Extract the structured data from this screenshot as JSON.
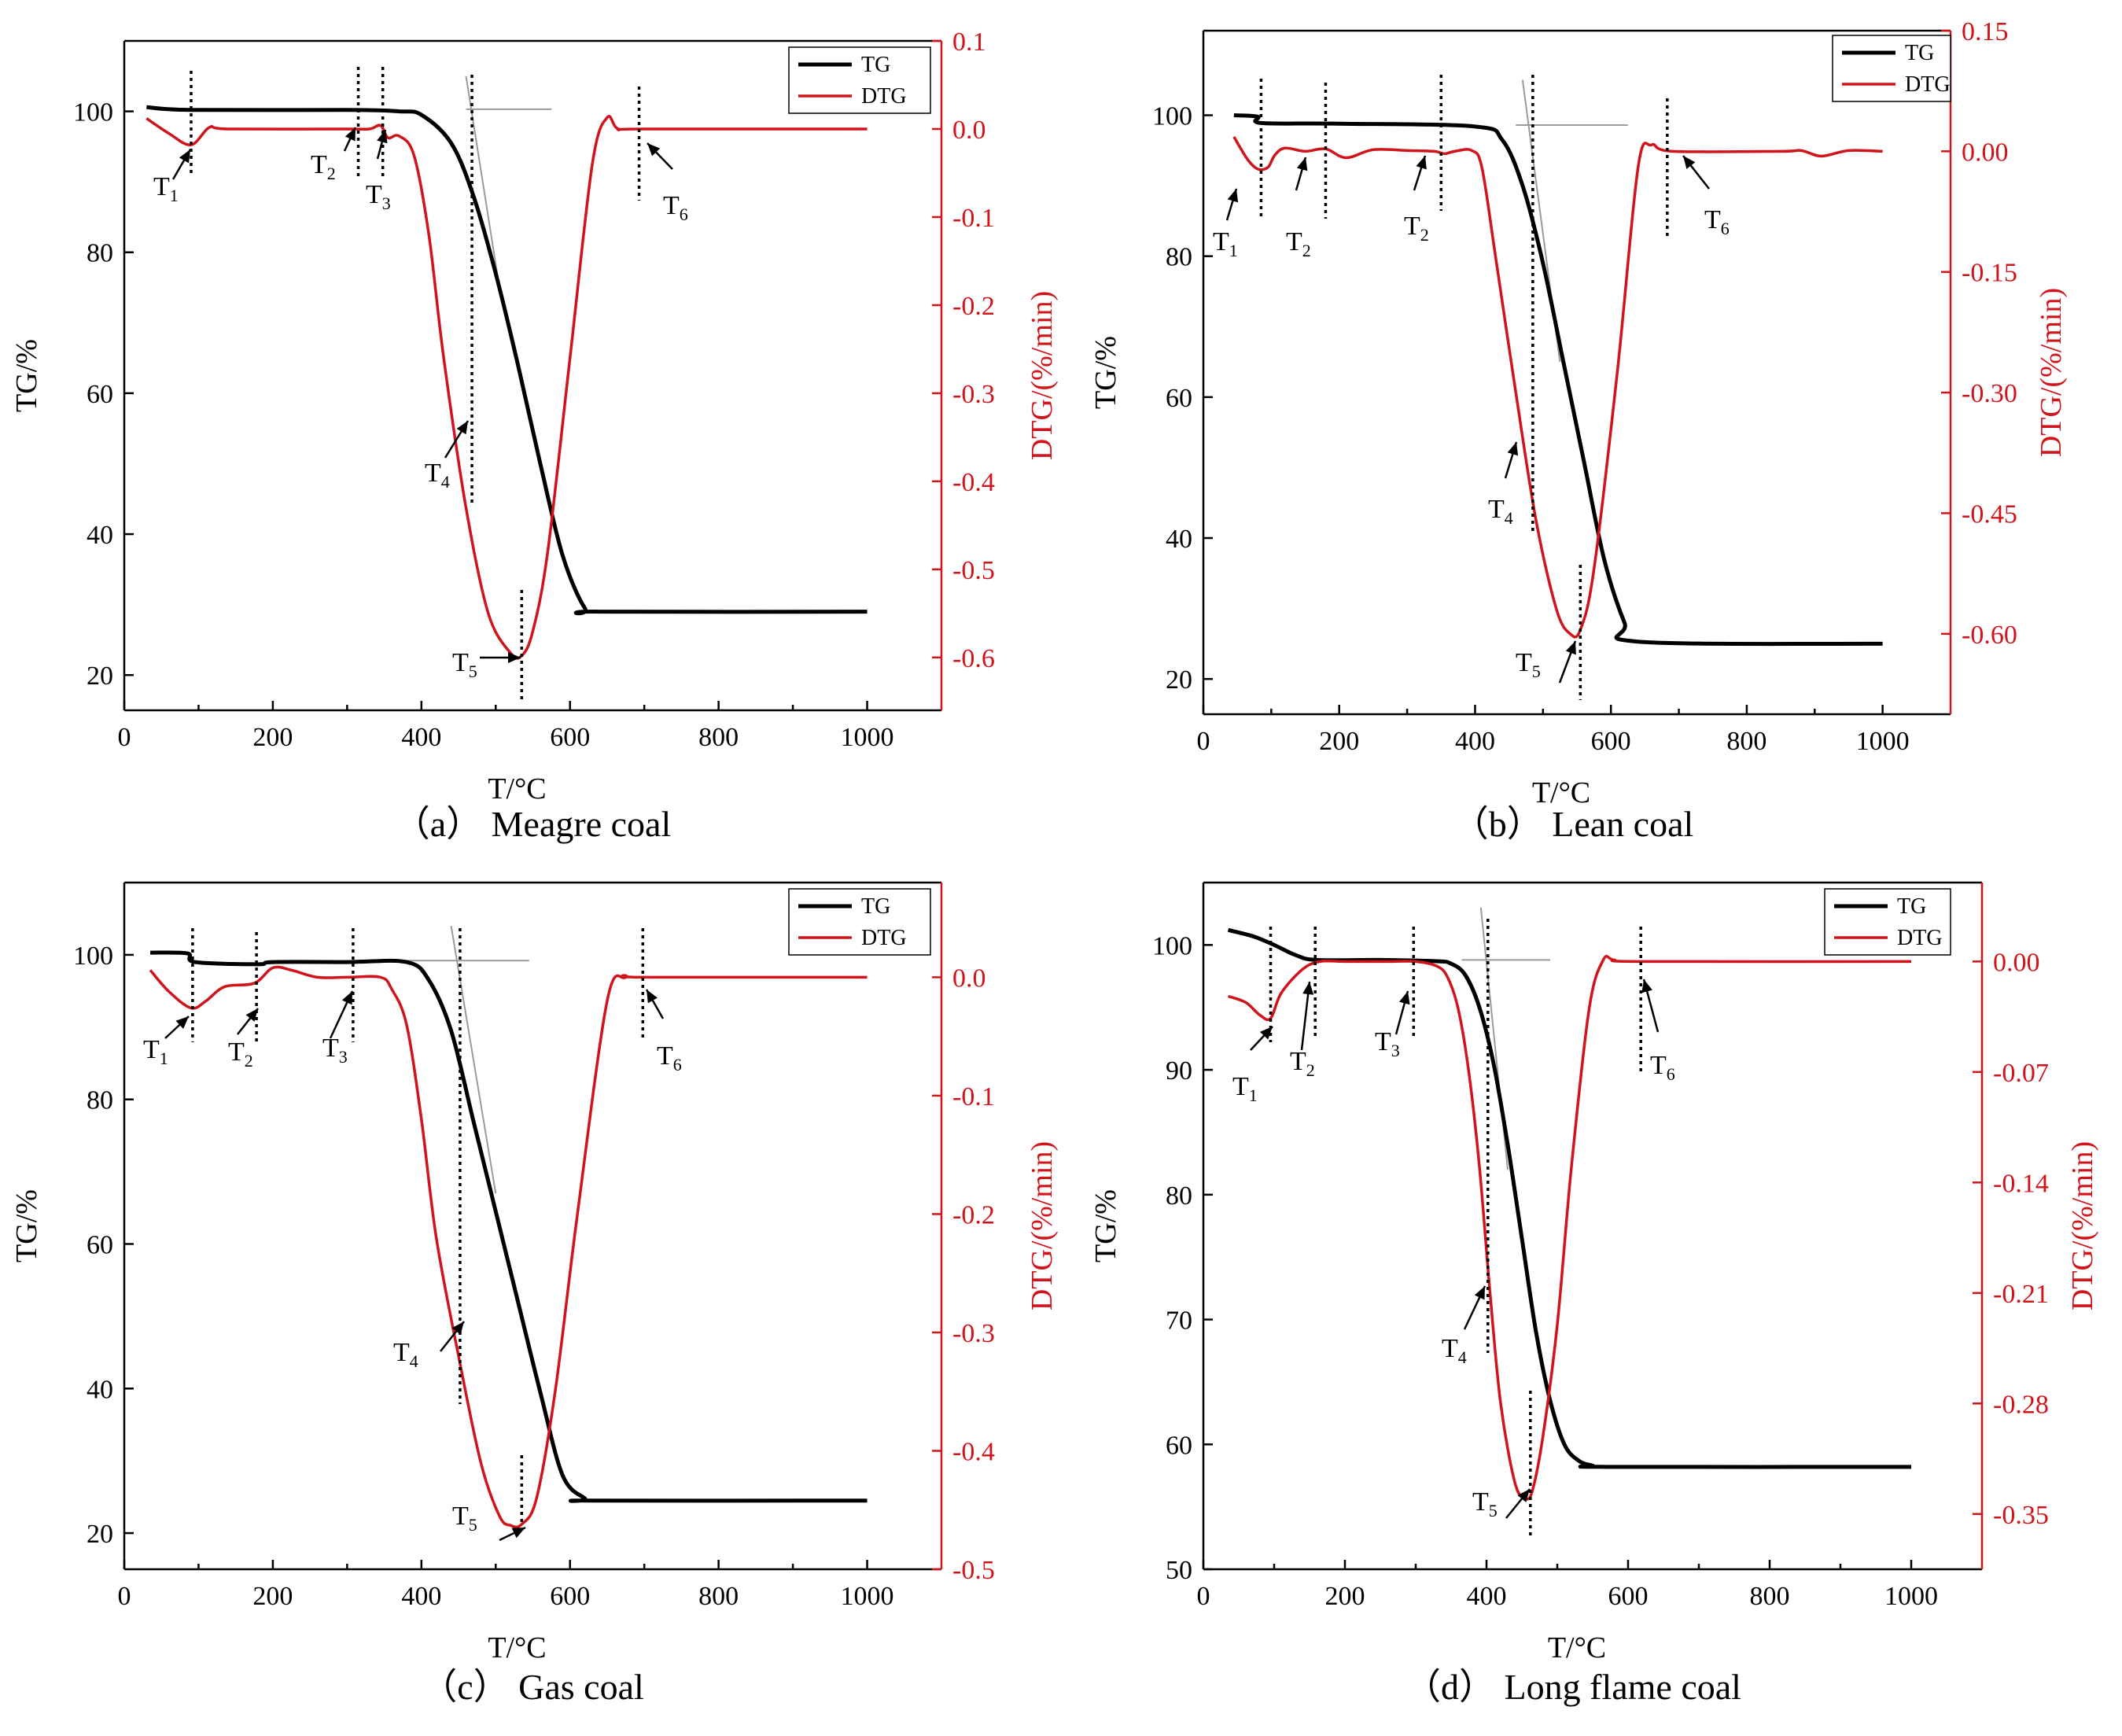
{
  "chart_data": [
    {
      "type": "line",
      "id": "a",
      "caption": "（a） Meagre coal",
      "xlabel": "T/°C",
      "ylabel_left": "TG/%",
      "ylabel_right": "DTG/(%/min)",
      "xlim": [
        0,
        1100
      ],
      "x_ticks": [
        0,
        200,
        400,
        600,
        800,
        1000
      ],
      "x_tick_labels": [
        "0",
        "200",
        "400",
        "600",
        "800",
        "1000"
      ],
      "ylim_left": [
        15,
        110
      ],
      "y_ticks_left": [
        20,
        40,
        60,
        80,
        100
      ],
      "y_tick_labels_left": [
        "20",
        "40",
        "60",
        "80",
        "100"
      ],
      "ylim_right": [
        -0.66,
        0.1
      ],
      "y_ticks_right": [
        0.1,
        0.0,
        -0.1,
        -0.2,
        -0.3,
        -0.4,
        -0.5,
        -0.6
      ],
      "y_tick_labels_right": [
        "0.1",
        "0.0",
        "-0.1",
        "-0.2",
        "-0.3",
        "-0.4",
        "-0.5",
        "-0.6"
      ],
      "legend": [
        "TG",
        "DTG"
      ],
      "series": [
        {
          "name": "TG",
          "axis": "left",
          "x": [
            30,
            90,
            300,
            370,
            400,
            440,
            470,
            500,
            530,
            560,
            590,
            620,
            640,
            1000
          ],
          "y": [
            100.6,
            100.2,
            100.2,
            100.0,
            99.5,
            95.5,
            88,
            77,
            64,
            50,
            37,
            29.5,
            29,
            29
          ]
        },
        {
          "name": "DTG",
          "axis": "right",
          "x": [
            30,
            60,
            90,
            115,
            140,
            300,
            330,
            345,
            355,
            370,
            390,
            410,
            430,
            460,
            490,
            520,
            535,
            550,
            570,
            600,
            630,
            650,
            665,
            700,
            1000
          ],
          "y": [
            0.012,
            -0.005,
            -0.018,
            0.002,
            0.0,
            0.0,
            0.0,
            0.004,
            -0.01,
            -0.008,
            -0.03,
            -0.12,
            -0.26,
            -0.43,
            -0.55,
            -0.595,
            -0.598,
            -0.57,
            -0.48,
            -0.26,
            -0.04,
            0.013,
            0.0,
            0.0,
            0.0
          ]
        }
      ],
      "tangents": [
        {
          "x": [
            460,
            575
          ],
          "axis": "left",
          "y": [
            100.3,
            100.3
          ]
        },
        {
          "x": [
            460,
            505
          ],
          "axis": "left",
          "y": [
            105,
            75
          ]
        }
      ],
      "markers": [
        {
          "label": "T",
          "sub": "1",
          "x": 90
        },
        {
          "label": "T",
          "sub": "2",
          "x": 315
        },
        {
          "label": "T",
          "sub": "3",
          "x": 348
        },
        {
          "label": "T",
          "sub": "4",
          "x": 468
        },
        {
          "label": "T",
          "sub": "5",
          "x": 535
        },
        {
          "label": "T",
          "sub": "6",
          "x": 693
        }
      ]
    },
    {
      "type": "line",
      "id": "b",
      "caption": "（b） Lean coal",
      "xlabel": "T/°C",
      "ylabel_left": "TG/%",
      "ylabel_right": "DTG/(%/min)",
      "xlim": [
        0,
        1100
      ],
      "x_ticks": [
        0,
        200,
        400,
        600,
        800,
        1000
      ],
      "x_tick_labels": [
        "0",
        "200",
        "400",
        "600",
        "800",
        "1000"
      ],
      "ylim_left": [
        15,
        112
      ],
      "y_ticks_left": [
        20,
        40,
        60,
        80,
        100
      ],
      "y_tick_labels_left": [
        "20",
        "40",
        "60",
        "80",
        "100"
      ],
      "ylim_right": [
        -0.7,
        0.15
      ],
      "y_ticks_right": [
        0.15,
        0.0,
        -0.15,
        -0.3,
        -0.45,
        -0.6
      ],
      "y_tick_labels_right": [
        "0.15",
        "0.00",
        "-0.15",
        "-0.30",
        "-0.45",
        "-0.60"
      ],
      "legend": [
        "TG",
        "DTG"
      ],
      "series": [
        {
          "name": "TG",
          "axis": "left",
          "x": [
            45,
            80,
            85,
            200,
            400,
            440,
            470,
            500,
            530,
            560,
            590,
            620,
            640,
            1000
          ],
          "y": [
            100,
            99.8,
            98.9,
            98.8,
            98.4,
            96.5,
            90,
            79,
            65,
            51,
            37,
            28,
            25.3,
            25
          ]
        },
        {
          "name": "DTG",
          "axis": "right",
          "x": [
            45,
            65,
            80,
            95,
            105,
            120,
            150,
            180,
            210,
            250,
            300,
            340,
            355,
            370,
            395,
            410,
            430,
            460,
            490,
            520,
            540,
            555,
            575,
            610,
            640,
            660,
            690,
            850,
            880,
            910,
            950,
            1000
          ],
          "y": [
            0.018,
            -0.01,
            -0.022,
            -0.02,
            -0.005,
            0.004,
            0.0,
            0.003,
            -0.008,
            0.002,
            0.001,
            0.0,
            -0.003,
            0.0,
            0.001,
            -0.02,
            -0.13,
            -0.3,
            -0.46,
            -0.57,
            -0.6,
            -0.595,
            -0.52,
            -0.27,
            -0.02,
            0.008,
            0.0,
            0.0,
            0.001,
            -0.006,
            0.001,
            0.0
          ]
        }
      ],
      "tangents": [
        {
          "x": [
            460,
            625
          ],
          "axis": "left",
          "y": [
            98.6,
            98.6
          ]
        },
        {
          "x": [
            470,
            525
          ],
          "axis": "left",
          "y": [
            105,
            65
          ]
        }
      ],
      "markers": [
        {
          "label": "T",
          "sub": "1",
          "x": 85
        },
        {
          "label": "T",
          "sub": "2",
          "x": 180
        },
        {
          "label": "T",
          "sub": "2",
          "x": 350
        },
        {
          "label": "T",
          "sub": "4",
          "x": 485
        },
        {
          "label": "T",
          "sub": "5",
          "x": 555
        },
        {
          "label": "T",
          "sub": "6",
          "x": 683
        }
      ]
    },
    {
      "type": "line",
      "id": "c",
      "caption": "（c） Gas coal",
      "xlabel": "T/°C",
      "ylabel_left": "TG/%",
      "ylabel_right": "DTG/(%/min)",
      "xlim": [
        0,
        1100
      ],
      "x_ticks": [
        0,
        200,
        400,
        600,
        800,
        1000
      ],
      "x_tick_labels": [
        "0",
        "200",
        "400",
        "600",
        "800",
        "1000"
      ],
      "ylim_left": [
        15,
        110
      ],
      "y_ticks_left": [
        20,
        40,
        60,
        80,
        100
      ],
      "y_tick_labels_left": [
        "20",
        "40",
        "60",
        "80",
        "100"
      ],
      "ylim_right": [
        -0.5,
        0.08
      ],
      "y_ticks_right": [
        0.0,
        -0.1,
        -0.2,
        -0.3,
        -0.4,
        -0.5
      ],
      "y_tick_labels_right": [
        "0.0",
        "-0.1",
        "-0.2",
        "-0.3",
        "-0.4",
        "-0.5"
      ],
      "legend": [
        "TG",
        "DTG"
      ],
      "series": [
        {
          "name": "TG",
          "axis": "left",
          "x": [
            35,
            85,
            95,
            180,
            200,
            300,
            380,
            410,
            440,
            470,
            500,
            530,
            560,
            590,
            620,
            630,
            1000
          ],
          "y": [
            100.3,
            100.2,
            99,
            98.7,
            99,
            99,
            99,
            96.5,
            89.5,
            77,
            64.5,
            52,
            39.5,
            28,
            24.8,
            24.5,
            24.5
          ]
        },
        {
          "name": "DTG",
          "axis": "right",
          "x": [
            35,
            60,
            90,
            110,
            135,
            175,
            200,
            225,
            260,
            300,
            345,
            360,
            380,
            400,
            420,
            450,
            480,
            505,
            520,
            535,
            555,
            580,
            610,
            650,
            675,
            700,
            1000
          ],
          "y": [
            0.006,
            -0.012,
            -0.026,
            -0.02,
            -0.008,
            -0.005,
            0.008,
            0.006,
            0.0,
            0.0,
            0.0,
            -0.01,
            -0.04,
            -0.12,
            -0.22,
            -0.32,
            -0.41,
            -0.455,
            -0.463,
            -0.462,
            -0.44,
            -0.35,
            -0.2,
            -0.02,
            0.0,
            0.0,
            0.0
          ]
        }
      ],
      "tangents": [
        {
          "x": [
            380,
            545
          ],
          "axis": "left",
          "y": [
            99.2,
            99.2
          ]
        },
        {
          "x": [
            440,
            500
          ],
          "axis": "left",
          "y": [
            104,
            67
          ]
        }
      ],
      "markers": [
        {
          "label": "T",
          "sub": "1",
          "x": 92
        },
        {
          "label": "T",
          "sub": "2",
          "x": 178
        },
        {
          "label": "T",
          "sub": "3",
          "x": 308
        },
        {
          "label": "T",
          "sub": "4",
          "x": 452
        },
        {
          "label": "T",
          "sub": "5",
          "x": 535
        },
        {
          "label": "T",
          "sub": "6",
          "x": 698
        }
      ]
    },
    {
      "type": "line",
      "id": "d",
      "caption": "（d） Long flame coal",
      "xlabel": "T/°C",
      "ylabel_left": "TG/%",
      "ylabel_right": "DTG/(%/min)",
      "xlim": [
        0,
        1100
      ],
      "x_ticks": [
        0,
        200,
        400,
        600,
        800,
        1000
      ],
      "x_tick_labels": [
        "0",
        "200",
        "400",
        "600",
        "800",
        "1000"
      ],
      "ylim_left": [
        50,
        105
      ],
      "y_ticks_left": [
        50,
        60,
        70,
        80,
        90,
        100
      ],
      "y_tick_labels_left": [
        "50",
        "60",
        "70",
        "80",
        "90",
        "100"
      ],
      "ylim_right": [
        -0.385,
        0.05
      ],
      "y_ticks_right": [
        0.0,
        -0.07,
        -0.14,
        -0.21,
        -0.28,
        -0.35
      ],
      "y_tick_labels_right": [
        "0.00",
        "-0.07",
        "-0.14",
        "-0.21",
        "-0.28",
        "-0.35"
      ],
      "legend": [
        "TG",
        "DTG"
      ],
      "series": [
        {
          "name": "TG",
          "axis": "left",
          "x": [
            35,
            70,
            100,
            130,
            160,
            250,
            330,
            350,
            370,
            390,
            410,
            430,
            450,
            470,
            490,
            510,
            530,
            550,
            570,
            1000
          ],
          "y": [
            101.2,
            100.7,
            100,
            99.2,
            98.8,
            98.8,
            98.7,
            98.5,
            97.6,
            95,
            90.5,
            84,
            76.5,
            69,
            63.5,
            60,
            58.7,
            58.3,
            58.2,
            58.2
          ]
        },
        {
          "name": "DTG",
          "axis": "right",
          "x": [
            35,
            60,
            80,
            95,
            110,
            140,
            165,
            200,
            260,
            300,
            330,
            345,
            360,
            375,
            390,
            405,
            420,
            440,
            455,
            465,
            480,
            500,
            520,
            545,
            565,
            580,
            620,
            1000
          ],
          "y": [
            -0.022,
            -0.026,
            -0.034,
            -0.036,
            -0.02,
            -0.005,
            0.0,
            0.0,
            0.0,
            0.0,
            -0.003,
            -0.01,
            -0.03,
            -0.07,
            -0.13,
            -0.21,
            -0.28,
            -0.33,
            -0.34,
            -0.335,
            -0.3,
            -0.23,
            -0.13,
            -0.03,
            0.001,
            0.001,
            0.0,
            0.0
          ]
        }
      ],
      "tangents": [
        {
          "x": [
            365,
            490
          ],
          "axis": "left",
          "y": [
            98.8,
            98.8
          ]
        },
        {
          "x": [
            392,
            430
          ],
          "axis": "left",
          "y": [
            103,
            82
          ]
        }
      ],
      "markers": [
        {
          "label": "T",
          "sub": "1",
          "x": 95
        },
        {
          "label": "T",
          "sub": "2",
          "x": 158
        },
        {
          "label": "T",
          "sub": "3",
          "x": 297
        },
        {
          "label": "T",
          "sub": "4",
          "x": 402
        },
        {
          "label": "T",
          "sub": "5",
          "x": 462
        },
        {
          "label": "T",
          "sub": "6",
          "x": 618
        }
      ]
    }
  ]
}
